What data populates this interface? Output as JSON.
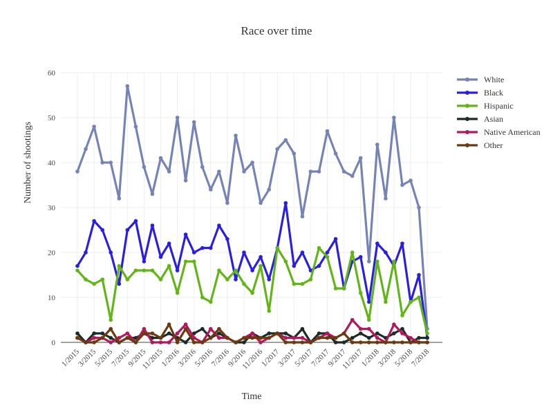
{
  "chart_data": {
    "type": "line",
    "title": "Race over time",
    "xlabel": "Time",
    "ylabel": "Number of shootings",
    "ylim": [
      0,
      60
    ],
    "yticks": [
      0,
      10,
      20,
      30,
      40,
      50,
      60
    ],
    "grid": true,
    "legend_position": "top-right",
    "x_labels": [
      "1/2015",
      "3/2015",
      "5/2015",
      "7/2015",
      "9/2015",
      "11/2015",
      "1/2016",
      "3/2016",
      "5/2016",
      "7/2016",
      "9/2016",
      "11/2016",
      "1/2017",
      "3/2017",
      "5/2017",
      "7/2017",
      "9/2017",
      "11/2017",
      "1/2018",
      "3/2018",
      "5/2018",
      "7/2018"
    ],
    "series": [
      {
        "name": "White",
        "color": "#7583b5",
        "values": [
          38,
          43,
          48,
          40,
          40,
          32,
          57,
          48,
          39,
          33,
          41,
          38,
          50,
          36,
          49,
          39,
          34,
          38,
          31,
          46,
          38,
          40,
          31,
          34,
          43,
          45,
          42,
          28,
          38,
          38,
          47,
          42,
          38,
          37,
          41,
          18,
          44,
          32,
          50,
          35,
          36,
          30,
          3
        ]
      },
      {
        "name": "Black",
        "color": "#2a1fe0",
        "values": [
          17,
          20,
          27,
          25,
          20,
          13,
          25,
          27,
          18,
          26,
          19,
          22,
          16,
          24,
          20,
          21,
          21,
          26,
          23,
          14,
          20,
          16,
          19,
          14,
          21,
          31,
          17,
          20,
          16,
          17,
          20,
          23,
          12,
          18,
          19,
          9,
          22,
          20,
          17,
          22,
          9,
          15,
          1
        ]
      },
      {
        "name": "Hispanic",
        "color": "#62b517",
        "values": [
          16,
          14,
          13,
          14,
          5,
          17,
          14,
          16,
          16,
          16,
          14,
          17,
          11,
          18,
          18,
          10,
          9,
          16,
          14,
          16,
          13,
          11,
          17,
          7,
          21,
          18,
          13,
          13,
          14,
          21,
          19,
          12,
          12,
          20,
          11,
          5,
          18,
          9,
          18,
          6,
          9,
          10,
          2
        ]
      },
      {
        "name": "Asian",
        "color": "#1c2b27",
        "values": [
          2,
          0,
          2,
          2,
          1,
          0,
          1,
          1,
          2,
          1,
          1,
          2,
          1,
          0,
          2,
          3,
          1,
          2,
          1,
          0,
          0,
          2,
          1,
          2,
          2,
          2,
          1,
          3,
          0,
          2,
          2,
          0,
          0,
          1,
          2,
          1,
          2,
          1,
          2,
          3,
          0,
          1,
          1
        ]
      },
      {
        "name": "Native American",
        "color": "#b3195a",
        "values": [
          1,
          0,
          1,
          1,
          0,
          1,
          2,
          0,
          3,
          0,
          0,
          0,
          2,
          4,
          1,
          0,
          3,
          1,
          1,
          0,
          1,
          2,
          0,
          1,
          2,
          1,
          1,
          1,
          0,
          1,
          2,
          1,
          2,
          5,
          3,
          3,
          1,
          0,
          4,
          2,
          1,
          0,
          0
        ]
      },
      {
        "name": "Other",
        "color": "#6b3a10",
        "values": [
          1,
          0,
          0,
          1,
          3,
          0,
          1,
          0,
          2,
          2,
          1,
          4,
          0,
          3,
          0,
          0,
          1,
          3,
          1,
          0,
          1,
          1,
          1,
          1,
          2,
          0,
          0,
          0,
          0,
          1,
          1,
          1,
          2,
          0,
          0,
          0,
          0,
          0,
          0,
          0,
          0,
          0,
          0
        ]
      }
    ]
  }
}
